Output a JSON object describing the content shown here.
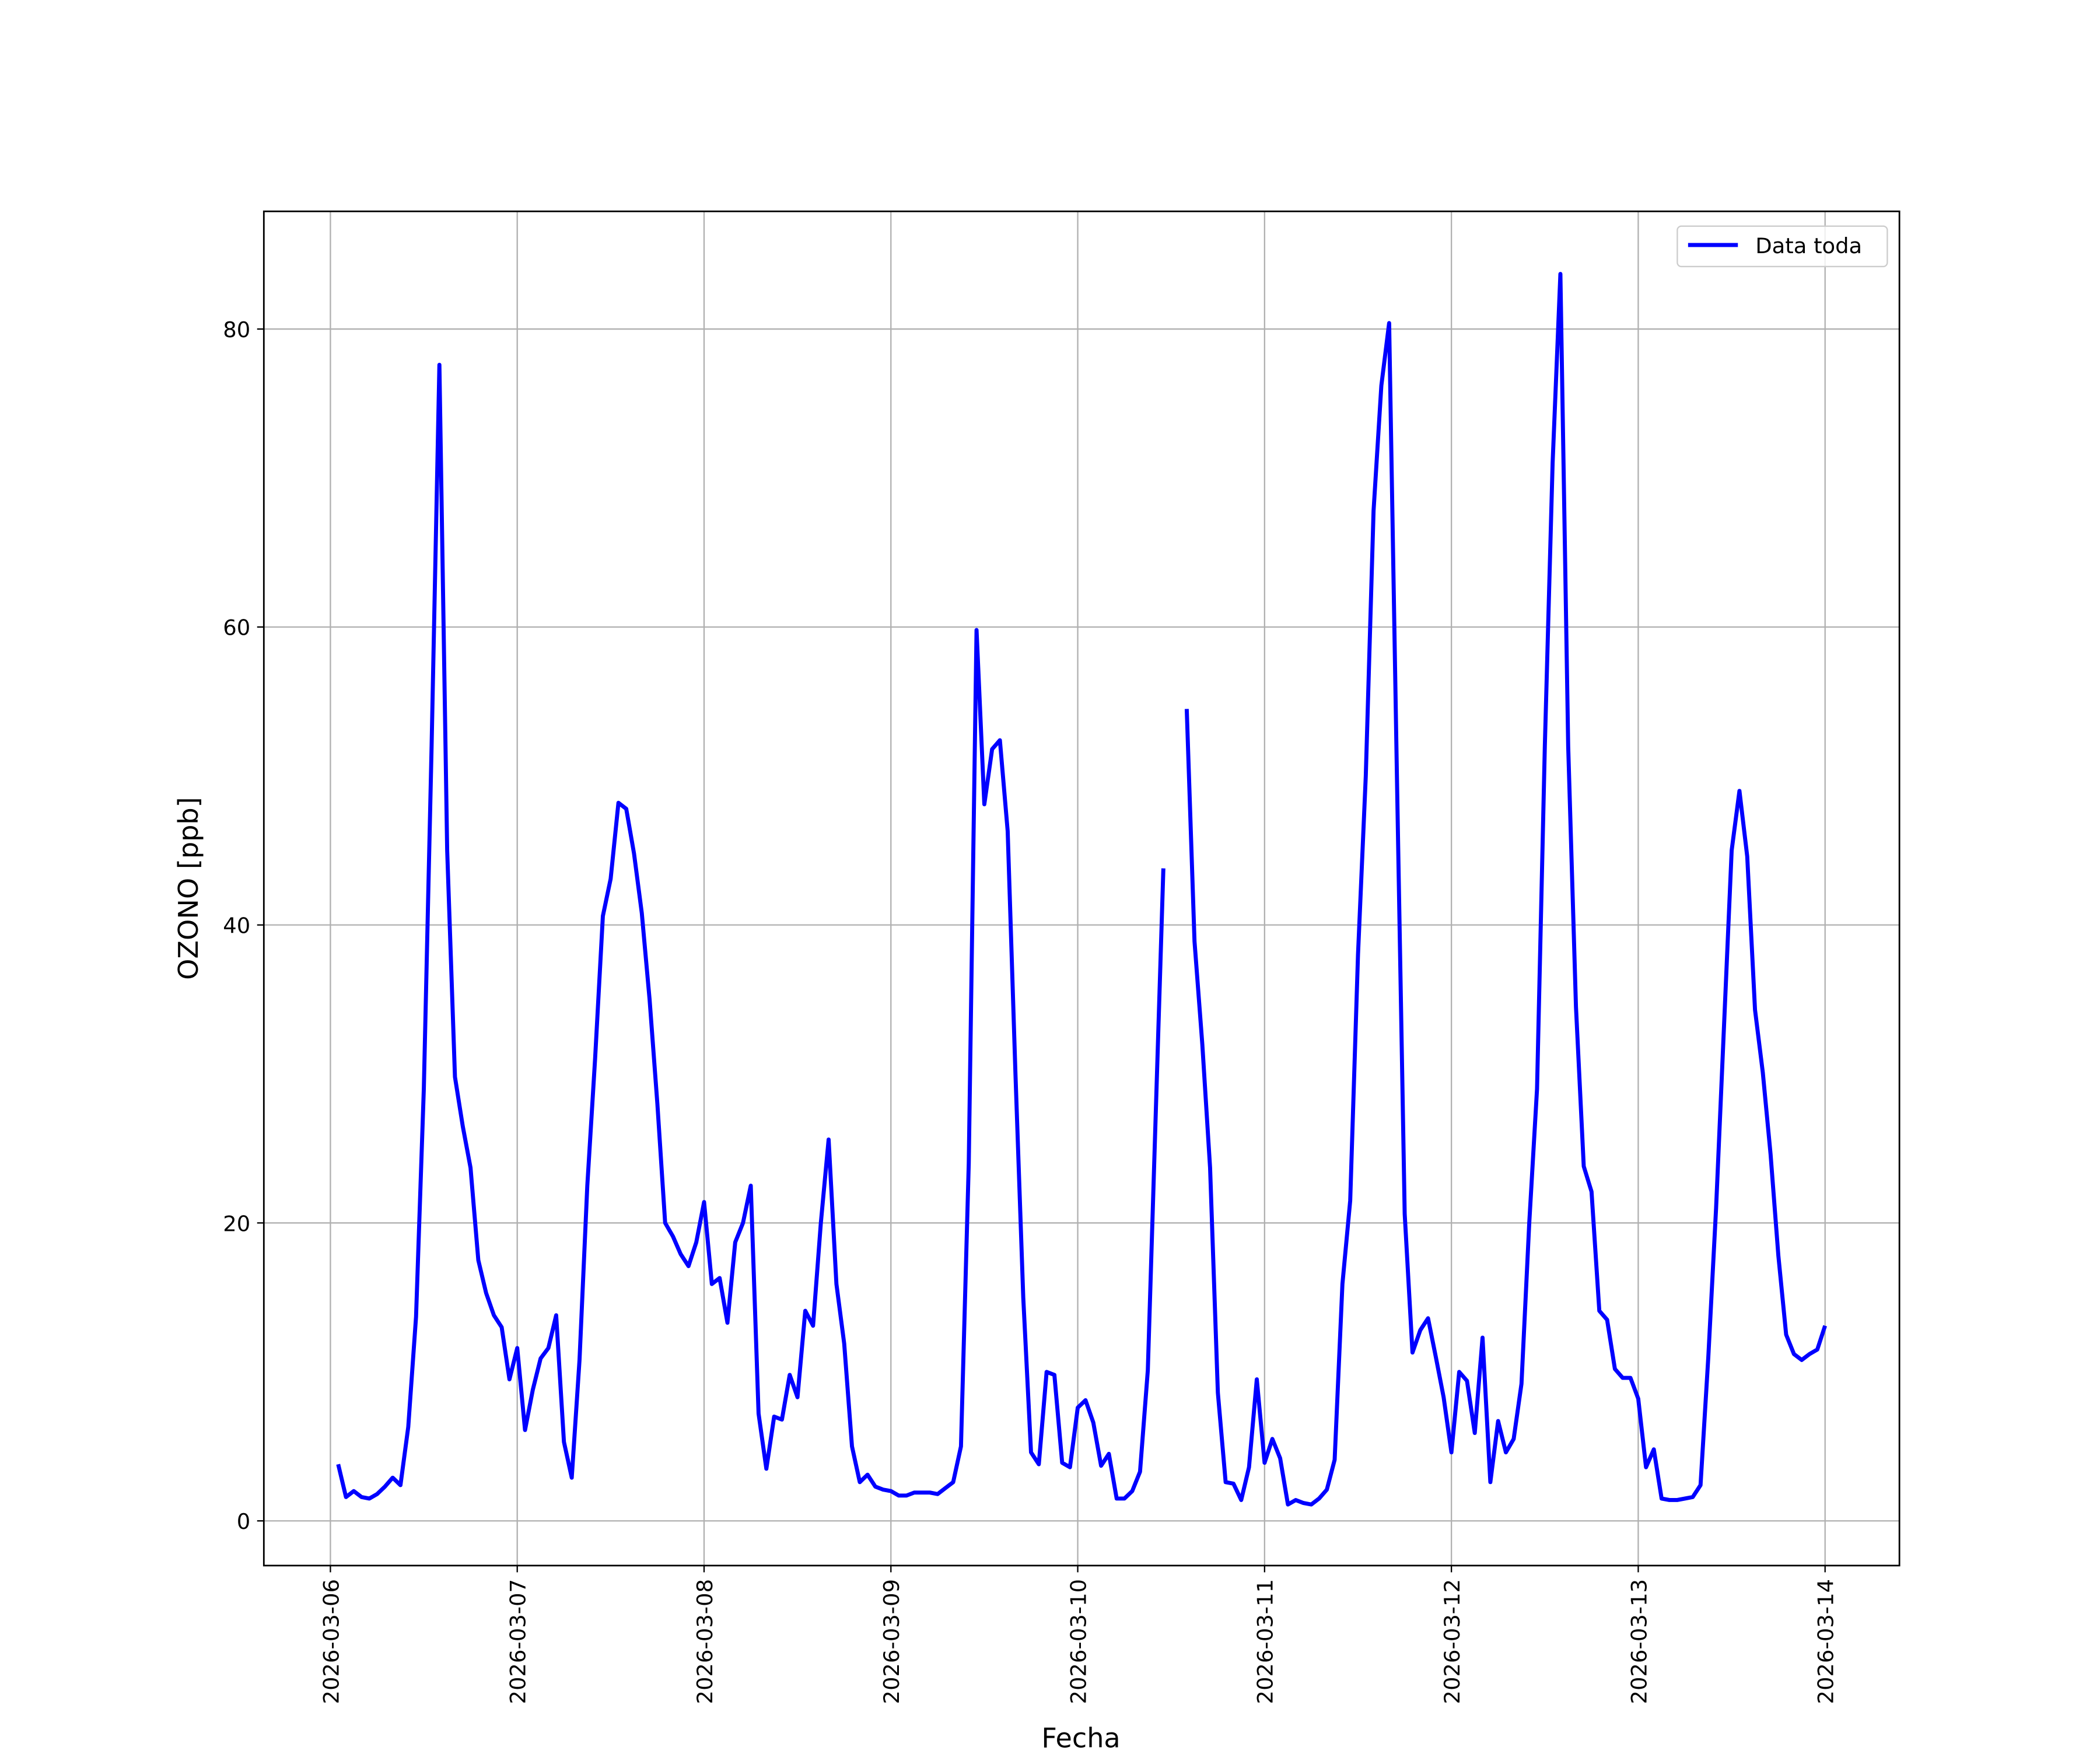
{
  "chart_data": {
    "type": "line",
    "x_label": "Fecha",
    "y_label": "OZONO [ppb]",
    "x": [
      "2026-03-06T01:00",
      "2026-03-06T02:00",
      "2026-03-06T03:00",
      "2026-03-06T04:00",
      "2026-03-06T05:00",
      "2026-03-06T06:00",
      "2026-03-06T07:00",
      "2026-03-06T08:00",
      "2026-03-06T09:00",
      "2026-03-06T10:00",
      "2026-03-06T11:00",
      "2026-03-06T12:00",
      "2026-03-06T13:00",
      "2026-03-06T14:00",
      "2026-03-06T15:00",
      "2026-03-06T16:00",
      "2026-03-06T17:00",
      "2026-03-06T18:00",
      "2026-03-06T19:00",
      "2026-03-06T20:00",
      "2026-03-06T21:00",
      "2026-03-06T22:00",
      "2026-03-06T23:00",
      "2026-03-07T00:00",
      "2026-03-07T01:00",
      "2026-03-07T02:00",
      "2026-03-07T03:00",
      "2026-03-07T04:00",
      "2026-03-07T05:00",
      "2026-03-07T06:00",
      "2026-03-07T07:00",
      "2026-03-07T08:00",
      "2026-03-07T09:00",
      "2026-03-07T10:00",
      "2026-03-07T11:00",
      "2026-03-07T12:00",
      "2026-03-07T13:00",
      "2026-03-07T14:00",
      "2026-03-07T15:00",
      "2026-03-07T16:00",
      "2026-03-07T17:00",
      "2026-03-07T18:00",
      "2026-03-07T19:00",
      "2026-03-07T20:00",
      "2026-03-07T21:00",
      "2026-03-07T22:00",
      "2026-03-07T23:00",
      "2026-03-08T00:00",
      "2026-03-08T01:00",
      "2026-03-08T02:00",
      "2026-03-08T03:00",
      "2026-03-08T04:00",
      "2026-03-08T05:00",
      "2026-03-08T06:00",
      "2026-03-08T07:00",
      "2026-03-08T08:00",
      "2026-03-08T09:00",
      "2026-03-08T10:00",
      "2026-03-08T11:00",
      "2026-03-08T12:00",
      "2026-03-08T13:00",
      "2026-03-08T14:00",
      "2026-03-08T15:00",
      "2026-03-08T16:00",
      "2026-03-08T17:00",
      "2026-03-08T18:00",
      "2026-03-08T19:00",
      "2026-03-08T20:00",
      "2026-03-08T21:00",
      "2026-03-08T22:00",
      "2026-03-08T23:00",
      "2026-03-09T00:00",
      "2026-03-09T01:00",
      "2026-03-09T02:00",
      "2026-03-09T03:00",
      "2026-03-09T04:00",
      "2026-03-09T05:00",
      "2026-03-09T06:00",
      "2026-03-09T07:00",
      "2026-03-09T08:00",
      "2026-03-09T09:00",
      "2026-03-09T10:00",
      "2026-03-09T11:00",
      "2026-03-09T12:00",
      "2026-03-09T13:00",
      "2026-03-09T14:00",
      "2026-03-09T15:00",
      "2026-03-09T16:00",
      "2026-03-09T17:00",
      "2026-03-09T18:00",
      "2026-03-09T19:00",
      "2026-03-09T20:00",
      "2026-03-09T21:00",
      "2026-03-09T22:00",
      "2026-03-09T23:00",
      "2026-03-10T00:00",
      "2026-03-10T01:00",
      "2026-03-10T02:00",
      "2026-03-10T03:00",
      "2026-03-10T04:00",
      "2026-03-10T05:00",
      "2026-03-10T06:00",
      "2026-03-10T07:00",
      "2026-03-10T08:00",
      "2026-03-10T09:00",
      "2026-03-10T10:00",
      "2026-03-10T11:00",
      "2026-03-10T12:00",
      "2026-03-10T13:00",
      "2026-03-10T14:00",
      "2026-03-10T15:00",
      "2026-03-10T16:00",
      "2026-03-10T17:00",
      "2026-03-10T18:00",
      "2026-03-10T19:00",
      "2026-03-10T20:00",
      "2026-03-10T21:00",
      "2026-03-10T22:00",
      "2026-03-10T23:00",
      "2026-03-11T00:00",
      "2026-03-11T01:00",
      "2026-03-11T02:00",
      "2026-03-11T03:00",
      "2026-03-11T04:00",
      "2026-03-11T05:00",
      "2026-03-11T06:00",
      "2026-03-11T07:00",
      "2026-03-11T08:00",
      "2026-03-11T09:00",
      "2026-03-11T10:00",
      "2026-03-11T11:00",
      "2026-03-11T12:00",
      "2026-03-11T13:00",
      "2026-03-11T14:00",
      "2026-03-11T15:00",
      "2026-03-11T16:00",
      "2026-03-11T17:00",
      "2026-03-11T18:00",
      "2026-03-11T19:00",
      "2026-03-11T20:00",
      "2026-03-11T21:00",
      "2026-03-11T22:00",
      "2026-03-11T23:00",
      "2026-03-12T00:00",
      "2026-03-12T01:00",
      "2026-03-12T02:00",
      "2026-03-12T03:00",
      "2026-03-12T04:00",
      "2026-03-12T05:00",
      "2026-03-12T06:00",
      "2026-03-12T07:00",
      "2026-03-12T08:00",
      "2026-03-12T09:00",
      "2026-03-12T10:00",
      "2026-03-12T11:00",
      "2026-03-12T12:00",
      "2026-03-12T13:00",
      "2026-03-12T14:00",
      "2026-03-12T15:00",
      "2026-03-12T16:00",
      "2026-03-12T17:00",
      "2026-03-12T18:00",
      "2026-03-12T19:00",
      "2026-03-12T20:00",
      "2026-03-12T21:00",
      "2026-03-12T22:00",
      "2026-03-12T23:00",
      "2026-03-13T00:00",
      "2026-03-13T01:00",
      "2026-03-13T02:00",
      "2026-03-13T03:00",
      "2026-03-13T04:00",
      "2026-03-13T05:00",
      "2026-03-13T06:00",
      "2026-03-13T07:00",
      "2026-03-13T08:00",
      "2026-03-13T09:00",
      "2026-03-13T10:00",
      "2026-03-13T11:00",
      "2026-03-13T12:00",
      "2026-03-13T13:00",
      "2026-03-13T14:00",
      "2026-03-13T15:00",
      "2026-03-13T16:00",
      "2026-03-13T17:00",
      "2026-03-13T18:00",
      "2026-03-13T19:00",
      "2026-03-13T20:00",
      "2026-03-13T21:00",
      "2026-03-13T22:00",
      "2026-03-13T23:00",
      "2026-03-14T00:00"
    ],
    "series": [
      {
        "name": "Data toda",
        "color": "#0000ff",
        "values": [
          3.8,
          1.6,
          2.0,
          1.6,
          1.5,
          1.8,
          2.3,
          2.9,
          2.4,
          6.3,
          13.7,
          29,
          52,
          77.6,
          45,
          29.8,
          26.5,
          23.7,
          17.5,
          15.3,
          13.8,
          13.0,
          9.5,
          11.6,
          6.1,
          8.8,
          10.9,
          11.6,
          13.8,
          5.3,
          2.9,
          10.8,
          22.5,
          31,
          40.6,
          43.1,
          48.2,
          47.8,
          44.8,
          40.8,
          35,
          28,
          20,
          19.1,
          17.9,
          17.1,
          18.7,
          21.4,
          15.9,
          16.3,
          13.3,
          18.7,
          20,
          22.5,
          7.2,
          3.5,
          7.0,
          6.8,
          9.8,
          8.3,
          14.1,
          13.1,
          20,
          25.6,
          15.9,
          11.9,
          5.0,
          2.6,
          3.1,
          2.3,
          2.1,
          2.0,
          1.7,
          1.7,
          1.9,
          1.9,
          1.9,
          1.8,
          2.2,
          2.6,
          5.0,
          24,
          59.8,
          48.1,
          51.8,
          52.4,
          46.3,
          30,
          15,
          4.6,
          3.8,
          10.0,
          9.8,
          3.9,
          3.6,
          7.6,
          8.1,
          6.6,
          3.7,
          4.5,
          1.5,
          1.5,
          2.0,
          3.3,
          10.1,
          27,
          43.8,
          null,
          null,
          54.5,
          38.9,
          32,
          23.7,
          8.6,
          2.6,
          2.5,
          1.4,
          3.6,
          9.5,
          3.9,
          5.5,
          4.2,
          1.1,
          1.4,
          1.2,
          1.1,
          1.5,
          2.1,
          4.1,
          15.9,
          21.5,
          38,
          50,
          67.8,
          76.2,
          80.4,
          50,
          20.6,
          11.3,
          12.8,
          13.6,
          11.0,
          8.3,
          4.6,
          10.0,
          9.4,
          5.9,
          12.3,
          2.6,
          6.7,
          4.6,
          5.5,
          9.2,
          20,
          29,
          52,
          71,
          83.7,
          52,
          34.5,
          23.8,
          22.1,
          14.1,
          13.5,
          10.2,
          9.6,
          9.6,
          8.2,
          3.6,
          4.8,
          1.5,
          1.4,
          1.4,
          1.5,
          1.6,
          2.4,
          11,
          21,
          33,
          45,
          49,
          44.6,
          34.3,
          30.1,
          24.6,
          17.8,
          12.5,
          11.2,
          10.8,
          11.2,
          11.5,
          13.1
        ]
      }
    ],
    "xlim": [
      "2026-03-05T15:27",
      "2026-03-14T09:33"
    ],
    "xticks": [
      "2026-03-06",
      "2026-03-07",
      "2026-03-08",
      "2026-03-09",
      "2026-03-10",
      "2026-03-11",
      "2026-03-12",
      "2026-03-13",
      "2026-03-14"
    ],
    "ylim": [
      -3,
      87.9
    ],
    "yticks": [
      0,
      20,
      40,
      60,
      80
    ],
    "grid": true,
    "legend": "upper right"
  }
}
